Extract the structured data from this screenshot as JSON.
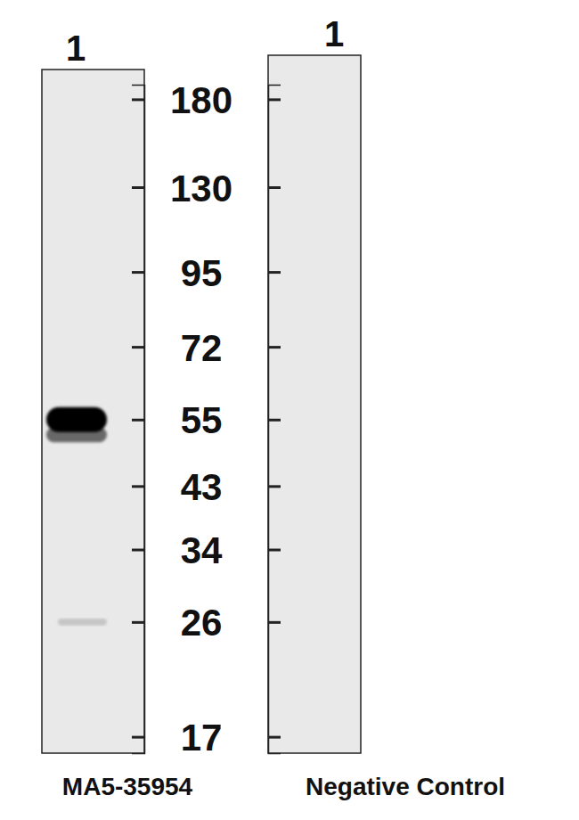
{
  "chart_data": {
    "type": "blot",
    "log": "y",
    "ylim": [
      16,
      190
    ],
    "yticks": [
      180,
      130,
      95,
      72,
      55,
      43,
      34,
      26,
      17
    ],
    "panels": [
      {
        "categories": [
          "1"
        ],
        "xlabel": "MA5-35954",
        "values": [
          55,
          52,
          26
        ],
        "intensity": [
          1,
          0.55,
          0.15
        ]
      },
      {
        "categories": [
          "1"
        ],
        "xlabel": "Negative Control",
        "values": [],
        "intensity": []
      }
    ]
  }
}
